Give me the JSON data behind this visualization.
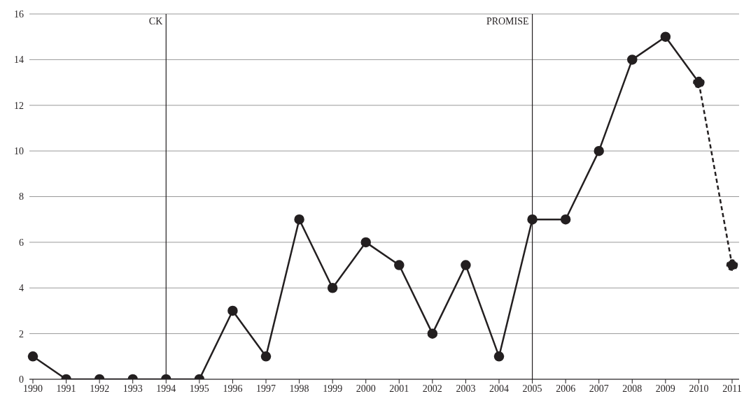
{
  "chart_data": {
    "type": "line",
    "categories": [
      "1990",
      "1991",
      "1992",
      "1993",
      "1994",
      "1995",
      "1996",
      "1997",
      "1998",
      "1999",
      "2000",
      "2001",
      "2002",
      "2003",
      "2004",
      "2005",
      "2006",
      "2007",
      "2008",
      "2009",
      "2010",
      "2011"
    ],
    "series": [
      {
        "color": "#231f20",
        "line_style": "dashed",
        "values": [
          null,
          null,
          null,
          null,
          null,
          null,
          null,
          null,
          null,
          null,
          null,
          null,
          null,
          null,
          null,
          null,
          null,
          null,
          null,
          null,
          13,
          5
        ]
      },
      {
        "color": "#231f20",
        "line_style": "solid",
        "values": [
          1,
          0,
          0,
          0,
          0,
          0,
          3,
          1,
          7,
          4,
          6,
          5,
          2,
          5,
          1,
          7,
          7,
          10,
          14,
          15,
          13,
          null
        ]
      }
    ],
    "ylim": [
      0,
      16
    ],
    "yticks": [
      0,
      2,
      4,
      6,
      8,
      10,
      12,
      14,
      16
    ],
    "grid": "y",
    "marker": "circle",
    "legend": false,
    "ref_lines": [
      {
        "axis": "x",
        "value": "1994",
        "label": "CK",
        "color": "#231f20"
      },
      {
        "axis": "x",
        "value": "2005",
        "label": "PROMISE",
        "color": "#231f20"
      }
    ]
  }
}
